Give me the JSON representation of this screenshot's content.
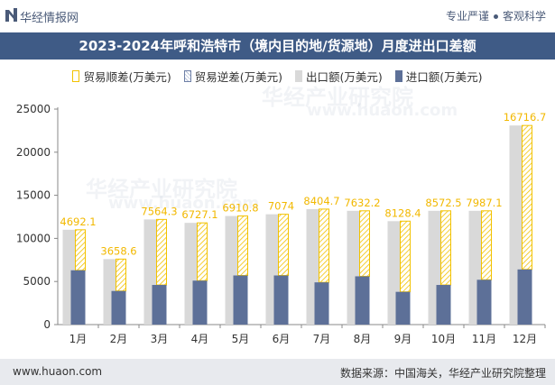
{
  "header": {
    "brand": "华经情报网",
    "tag1": "专业严谨",
    "tag2": "客观科学"
  },
  "chart_data": {
    "type": "bar",
    "title": "2023-2024年呼和浩特市（境内目的地/货源地）月度进出口差额",
    "categories": [
      "1月",
      "2月",
      "3月",
      "4月",
      "5月",
      "6月",
      "7月",
      "8月",
      "9月",
      "10月",
      "11月",
      "12月"
    ],
    "series": [
      {
        "name": "贸易顺差(万美元)",
        "values": [
          4692.1,
          3658.6,
          7564.3,
          6727.1,
          6910.8,
          7074,
          8404.7,
          7632.2,
          8128.4,
          8572.5,
          7987.1,
          16716.7
        ]
      },
      {
        "name": "贸易逆差(万美元)",
        "values": [
          0,
          0,
          0,
          0,
          0,
          0,
          0,
          0,
          0,
          0,
          0,
          0
        ]
      },
      {
        "name": "出口额(万美元)",
        "values": [
          11000,
          7600,
          12200,
          11800,
          12600,
          12800,
          13400,
          13200,
          12000,
          13200,
          13200,
          23100
        ]
      },
      {
        "name": "进口额(万美元)",
        "values": [
          6300,
          3900,
          4600,
          5100,
          5700,
          5700,
          4900,
          5600,
          3800,
          4600,
          5200,
          6400
        ]
      }
    ],
    "data_labels": [
      "4692.1",
      "3658.6",
      "7564.3",
      "6727.1",
      "6910.8",
      "7074",
      "8404.7",
      "7632.2",
      "8128.4",
      "8572.5",
      "7987.1",
      "16716.7"
    ],
    "yticks": [
      "0",
      "5000",
      "10000",
      "15000",
      "20000",
      "25000"
    ],
    "ylim": [
      0,
      25000
    ],
    "colors": {
      "surplus": "#f2c200",
      "export": "#d9d9d9",
      "import": "#5d7098",
      "deficit": "#6d7fa6"
    },
    "grid": false,
    "legend_position": "top"
  },
  "footer": {
    "site": "www.huaon.com",
    "source": "数据来源：中国海关，华经产业研究院整理"
  },
  "watermarks": [
    "华经产业研究院",
    "www.huaon.com",
    "华经产业研究院",
    "www.huaon.com"
  ]
}
